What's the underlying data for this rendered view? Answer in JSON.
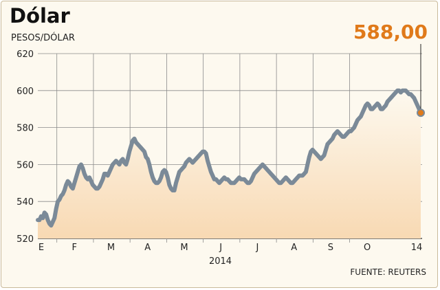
{
  "chart_data": {
    "type": "area",
    "title": "Dólar",
    "ylabel": "PESOS/DÓLAR",
    "ylim": [
      520,
      620
    ],
    "yticks": [
      520,
      540,
      560,
      580,
      600,
      620
    ],
    "month_labels": [
      "E",
      "F",
      "M",
      "A",
      "M",
      "J",
      "J",
      "A",
      "S",
      "O",
      "14"
    ],
    "year_label": "2014",
    "last_value_label": "588,00",
    "source": "FUENTE: REUTERS",
    "grid": true,
    "colors": {
      "line": "#7b8a98",
      "fill_top": "#f8d9b3",
      "accent": "#e07a1a"
    },
    "series": [
      {
        "values": [
          530,
          530,
          532,
          531,
          534,
          533,
          530,
          528,
          527,
          529,
          531,
          536,
          540,
          541,
          543,
          544,
          546,
          549,
          551,
          550,
          548,
          547,
          550,
          553,
          556,
          559,
          560,
          558,
          555,
          553,
          552,
          553,
          551,
          549,
          548,
          547,
          547,
          548,
          550,
          552,
          555,
          555,
          554,
          556,
          558,
          560,
          561,
          562,
          561,
          560,
          562,
          563,
          561,
          560,
          563,
          567,
          570,
          573,
          574,
          572,
          571,
          570,
          569,
          568,
          567,
          564,
          563,
          560,
          556,
          553,
          551,
          550,
          550,
          551,
          553,
          556,
          557,
          556,
          553,
          549,
          547,
          546,
          546,
          550,
          553,
          556,
          557,
          558,
          559,
          561,
          562,
          563,
          562,
          561,
          562,
          563,
          564,
          565,
          566,
          567,
          567,
          566,
          562,
          559,
          556,
          554,
          552,
          552,
          551,
          550,
          551,
          552,
          553,
          552,
          552,
          551,
          550,
          550,
          550,
          551,
          552,
          553,
          552,
          552,
          552,
          551,
          550,
          550,
          551,
          553,
          555,
          556,
          557,
          558,
          559,
          560,
          559,
          558,
          557,
          556,
          555,
          554,
          553,
          552,
          551,
          550,
          550,
          551,
          552,
          553,
          552,
          551,
          550,
          550,
          551,
          552,
          553,
          554,
          554,
          554,
          555,
          556,
          560,
          564,
          567,
          568,
          567,
          566,
          565,
          564,
          563,
          564,
          565,
          568,
          571,
          572,
          573,
          574,
          576,
          577,
          578,
          577,
          576,
          575,
          575,
          576,
          577,
          578,
          578,
          579,
          580,
          582,
          584,
          585,
          586,
          588,
          590,
          592,
          593,
          592,
          590,
          590,
          591,
          592,
          593,
          592,
          590,
          590,
          591,
          592,
          594,
          595,
          596,
          597,
          598,
          599,
          600,
          600,
          599,
          600,
          600,
          600,
          599,
          598,
          598,
          597,
          596,
          594,
          592,
          590,
          588
        ]
      }
    ]
  }
}
